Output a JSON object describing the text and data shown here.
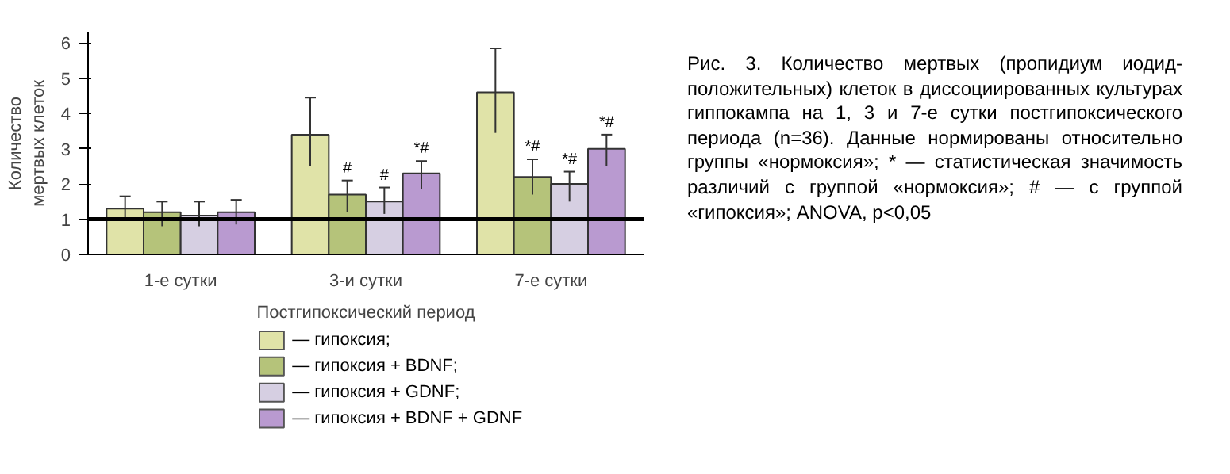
{
  "chart_data": {
    "type": "bar",
    "xlabel": "Постгипоксический период",
    "ylabel": "Количество мертвых клеток",
    "categories": [
      "1-е сутки",
      "3-и сутки",
      "7-е сутки"
    ],
    "series": [
      {
        "name": "— гипоксия;",
        "color": "#e0e3a8",
        "values": [
          1.3,
          3.4,
          4.6
        ],
        "errors": [
          [
            0.95,
            1.65
          ],
          [
            2.5,
            4.45
          ],
          [
            3.45,
            5.85
          ]
        ]
      },
      {
        "name": "— гипоксия + BDNF;",
        "color": "#b5c37a",
        "values": [
          1.2,
          1.7,
          2.2
        ],
        "errors": [
          [
            0.8,
            1.5
          ],
          [
            1.2,
            2.1
          ],
          [
            1.7,
            2.7
          ]
        ],
        "value_labels": [
          null,
          "#",
          "*#"
        ]
      },
      {
        "name": "— гипоксия + GDNF;",
        "color": "#d6cfe2",
        "values": [
          1.1,
          1.5,
          2.0
        ],
        "errors": [
          [
            0.8,
            1.5
          ],
          [
            1.15,
            1.9
          ],
          [
            1.5,
            2.35
          ]
        ],
        "value_labels": [
          null,
          "#",
          "*#"
        ]
      },
      {
        "name": "— гипоксия + BDNF + GDNF",
        "color": "#b99ad0",
        "values": [
          1.2,
          2.3,
          3.0
        ],
        "errors": [
          [
            0.85,
            1.55
          ],
          [
            1.85,
            2.65
          ],
          [
            2.5,
            3.4
          ]
        ],
        "value_labels": [
          null,
          "*#",
          "*#"
        ]
      }
    ],
    "ylim": [
      0,
      6.3
    ],
    "yticks": [
      0,
      1,
      2,
      3,
      4,
      5,
      6
    ],
    "grid": false,
    "legend": "bottom",
    "ref_lines": [
      {
        "axis": "y",
        "value": 1,
        "color": "#000000"
      }
    ],
    "annotations": [
      "Рис. 3. Количество мертвых (пропидиум иодид-положительных) клеток в диссоциированных культурах гиппокампа на 1, 3 и 7-е сутки постгипоксического периода (n=36). Данные нормированы относительно группы «нормоксия»; * — статистическая значимость различий с группой «нормоксия»; # — с группой «гипоксия»; ANOVA, p<0,05"
    ]
  }
}
